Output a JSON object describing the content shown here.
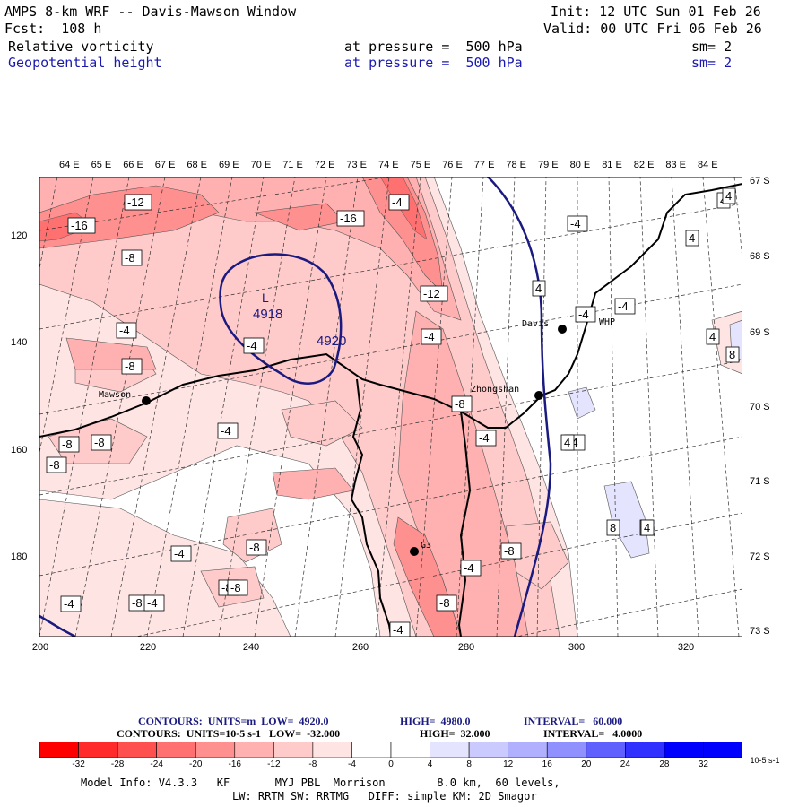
{
  "header": {
    "title": "AMPS 8-km WRF -- Davis-Mawson Window",
    "fcst": "Fcst:  108 h",
    "init": "Init: 12 UTC Sun 01 Feb 26",
    "valid": "Valid: 00 UTC Fri 06 Feb 26",
    "field1": "Relative vorticity",
    "field1_level": "at pressure =  500 hPa",
    "field1_sm": "sm= 2",
    "field2": "Geopotential height",
    "field2_level": "at pressure =  500 hPa",
    "field2_sm": "sm= 2"
  },
  "map": {
    "lon_labels": [
      "64 E",
      "65 E",
      "66 E",
      "67 E",
      "68 E",
      "69 E",
      "70 E",
      "71 E",
      "72 E",
      "73 E",
      "74 E",
      "75 E",
      "76 E",
      "77 E",
      "78 E",
      "79 E",
      "80 E",
      "81 E",
      "82 E",
      "83 E",
      "84 E"
    ],
    "lat_labels": [
      "67 S",
      "68 S",
      "69 S",
      "70 S",
      "71 S",
      "72 S",
      "73 S"
    ],
    "x_ticks": [
      "200",
      "220",
      "240",
      "260",
      "280",
      "300",
      "320"
    ],
    "y_ticks": [
      "120",
      "140",
      "160",
      "180"
    ],
    "stations": [
      {
        "name": "Mawson"
      },
      {
        "name": "Davis"
      },
      {
        "name": "WHP"
      },
      {
        "name": "Zhongshan"
      },
      {
        "name": "G3"
      }
    ],
    "height_labels": [
      "L",
      "4918",
      "4920"
    ],
    "vort_labels": [
      "-12",
      "-16",
      "-8",
      "-16",
      "-4",
      "-4",
      "-8",
      "-8",
      "-12",
      "-4",
      "-4",
      "-8",
      "-4",
      "-8",
      "-8",
      "-8",
      "-4",
      "-4",
      "-8",
      "-8",
      "-4",
      "-4",
      "-8",
      "-8",
      "-4",
      "-4",
      "-4",
      "-8",
      "-4",
      "-4",
      "4",
      "4",
      "4",
      "4",
      "-4",
      "4",
      "4",
      "8",
      "8",
      "4",
      "4"
    ]
  },
  "footer": {
    "line1_contours": "CONTOURS:  UNITS=m  LOW=  4920.0",
    "line1_high": "HIGH=  4980.0",
    "line1_interval": "INTERVAL=   60.000",
    "line2_contours": "CONTOURS:  UNITS=10-5 s-1   LOW=  -32.000",
    "line2_high": "HIGH=  32.000",
    "line2_interval": "INTERVAL=   4.0000",
    "colorbar_labels": [
      "-32",
      "-28",
      "-24",
      "-20",
      "-16",
      "-12",
      "-8",
      "-4",
      "0",
      "4",
      "8",
      "12",
      "16",
      "20",
      "24",
      "28",
      "32"
    ],
    "colorbar_unit": "10-5 s-1",
    "colorbar_colors": [
      "#ff0000",
      "#ff2a2a",
      "#ff5050",
      "#ff7070",
      "#ff9090",
      "#ffb0b0",
      "#ffcaca",
      "#ffe4e4",
      "#ffffff",
      "#ffffff",
      "#e4e4ff",
      "#caca ff",
      "#b0b0ff",
      "#9090ff",
      "#6060ff",
      "#3030ff",
      "#0000ff"
    ],
    "model_info": "Model Info: V4.3.3   KF       MYJ PBL  Morrison        8.0 km,  60 levels,",
    "model_info2": "LW: RRTM SW: RRTMG   DIFF: simple KM: 2D Smagor"
  }
}
